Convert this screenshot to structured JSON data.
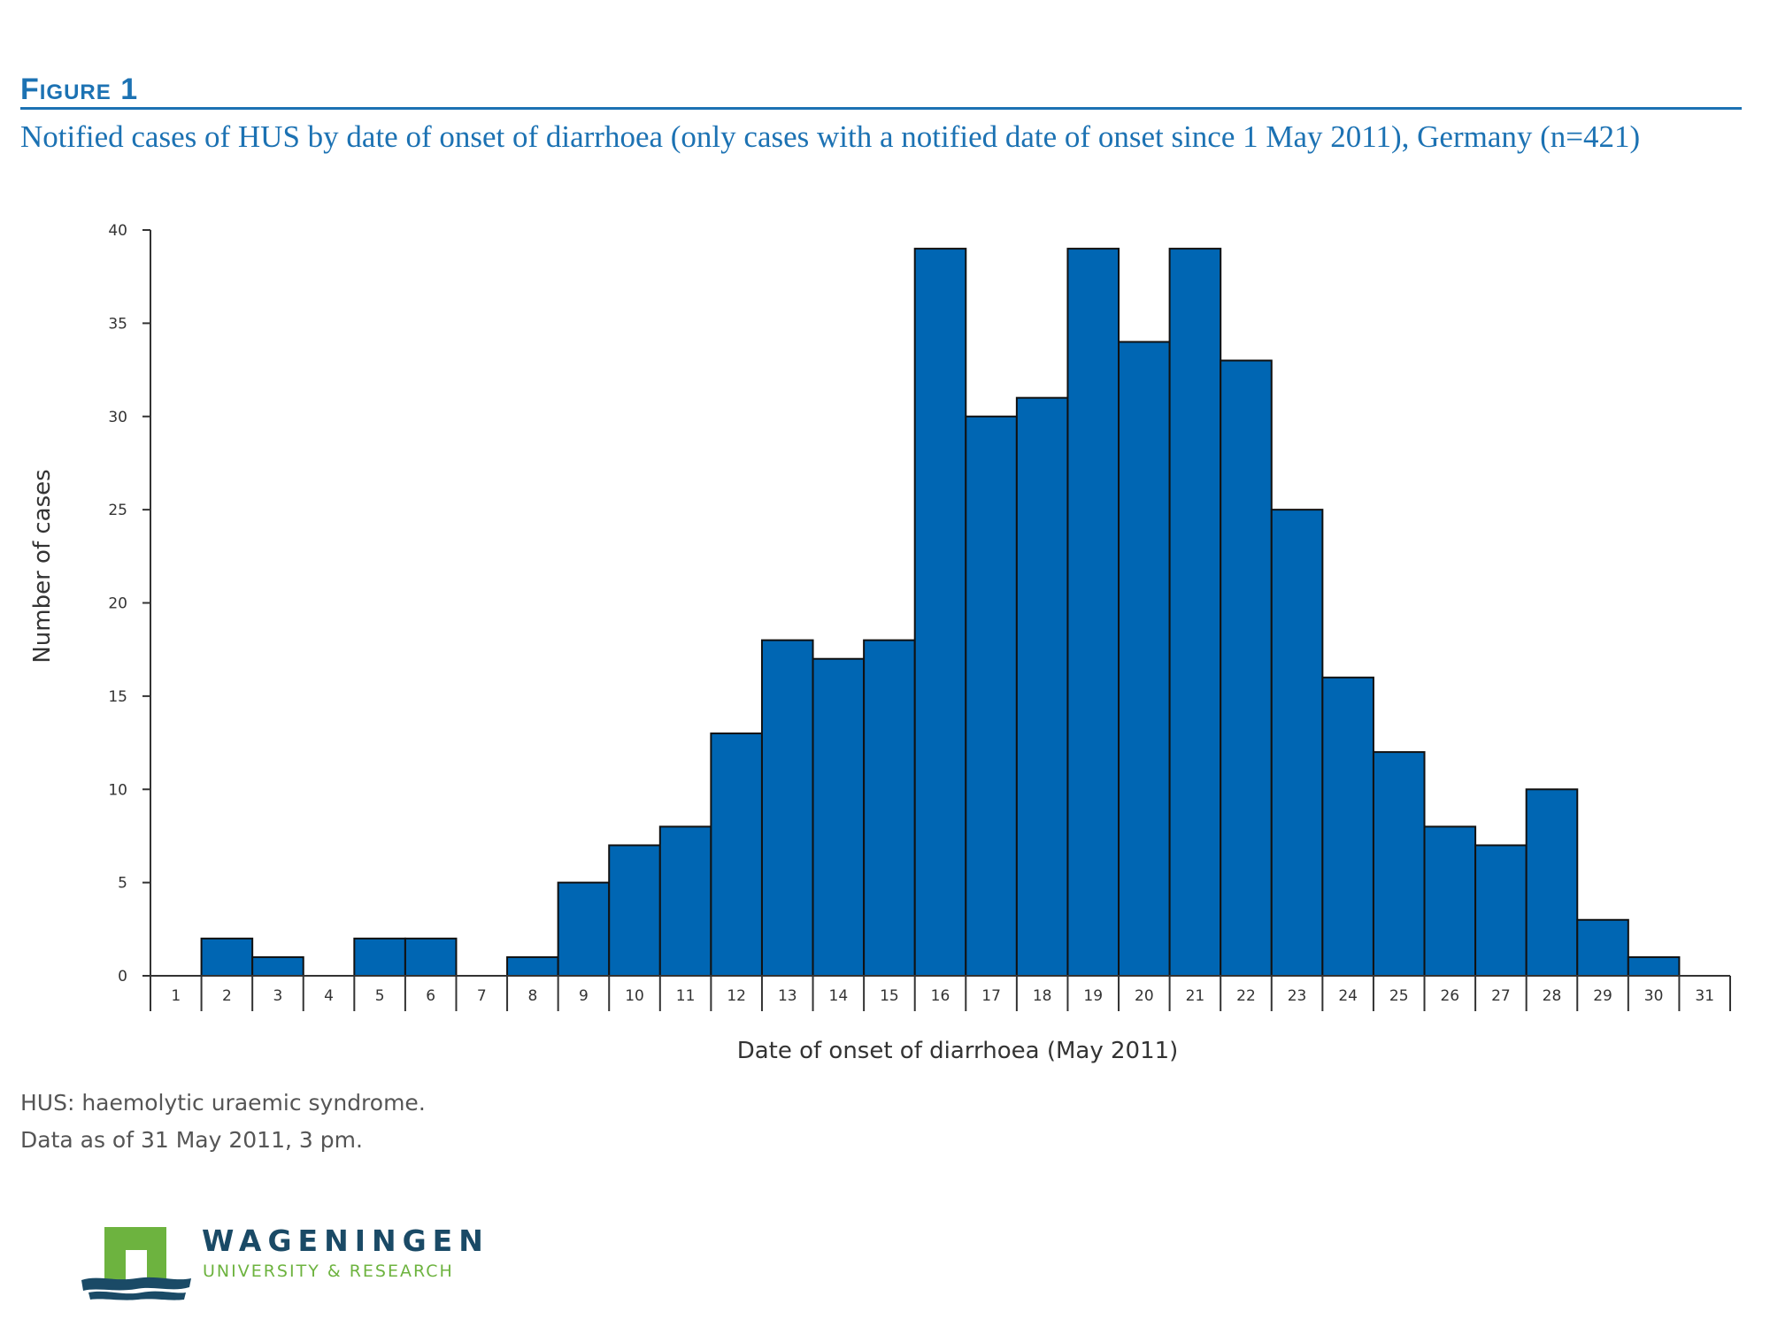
{
  "figure_label": "Figure 1",
  "chart_data": {
    "type": "bar",
    "title": "Notified cases of HUS by date of onset of diarrhoea (only cases with a notified date of onset since 1 May 2011), Germany (n=421)",
    "xlabel": "Date of onset of diarrhoea (May 2011)",
    "ylabel": "Number of cases",
    "ylim": [
      0,
      40
    ],
    "yticks": [
      0,
      5,
      10,
      15,
      20,
      25,
      30,
      35,
      40
    ],
    "categories": [
      "1",
      "2",
      "3",
      "4",
      "5",
      "6",
      "7",
      "8",
      "9",
      "10",
      "11",
      "12",
      "13",
      "14",
      "15",
      "16",
      "17",
      "18",
      "19",
      "20",
      "21",
      "22",
      "23",
      "24",
      "25",
      "26",
      "27",
      "28",
      "29",
      "30",
      "31"
    ],
    "values": [
      0,
      2,
      1,
      0,
      2,
      2,
      0,
      1,
      5,
      7,
      8,
      13,
      18,
      17,
      18,
      39,
      30,
      31,
      39,
      34,
      39,
      33,
      25,
      16,
      12,
      8,
      7,
      10,
      3,
      1,
      0
    ],
    "grid": false,
    "bar_color": "#0066b3",
    "bar_edge_color": "#111111"
  },
  "notes": {
    "line1": "HUS: haemolytic uraemic syndrome.",
    "line2": "Data as of 31 May 2011, 3 pm."
  },
  "logo": {
    "name": "WAGENINGEN",
    "subtitle": "UNIVERSITY & RESEARCH",
    "colors": {
      "green": "#6db33f",
      "navy": "#1a4a66"
    }
  },
  "colors": {
    "accent": "#1c72b3",
    "text": "#333333"
  }
}
